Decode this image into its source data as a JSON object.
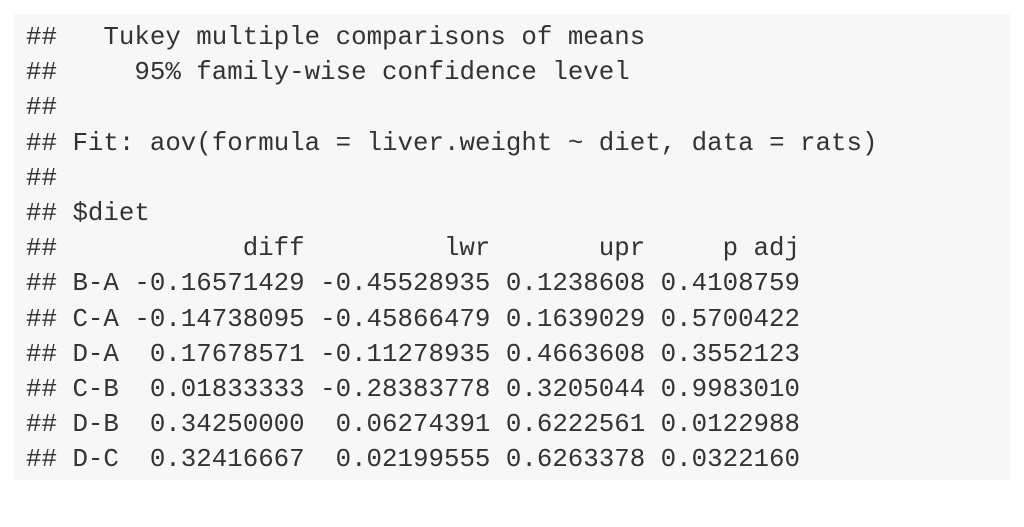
{
  "header_lines": [
    "##   Tukey multiple comparisons of means",
    "##     95% family-wise confidence level",
    "##",
    "## Fit: aov(formula = liver.weight ~ diet, data = rats)",
    "##",
    "## $diet"
  ],
  "table": {
    "prefix": "##",
    "columns": [
      "diff",
      "lwr",
      "upr",
      "p adj"
    ],
    "rows": [
      {
        "label": "B-A",
        "cells": [
          "-0.16571429",
          "-0.45528935",
          "0.1238608",
          "0.4108759"
        ]
      },
      {
        "label": "C-A",
        "cells": [
          "-0.14738095",
          "-0.45866479",
          "0.1639029",
          "0.5700422"
        ]
      },
      {
        "label": "D-A",
        "cells": [
          "0.17678571",
          "-0.11278935",
          "0.4663608",
          "0.3552123"
        ]
      },
      {
        "label": "C-B",
        "cells": [
          "0.01833333",
          "-0.28383778",
          "0.3205044",
          "0.9983010"
        ]
      },
      {
        "label": "D-B",
        "cells": [
          "0.34250000",
          "0.06274391",
          "0.6222561",
          "0.0122988"
        ]
      },
      {
        "label": "D-C",
        "cells": [
          "0.32416667",
          "0.02199555",
          "0.6263378",
          "0.0322160"
        ]
      }
    ]
  }
}
